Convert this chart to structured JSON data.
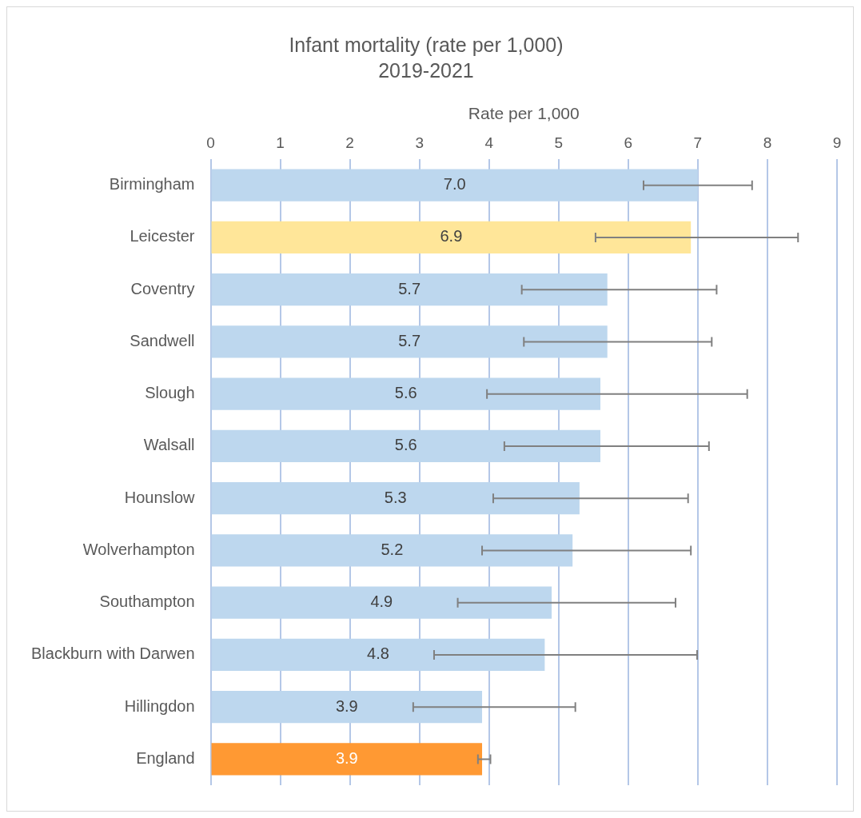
{
  "chart_data": {
    "type": "bar",
    "orientation": "horizontal",
    "title": "Infant mortality (rate per 1,000)",
    "subtitle": "2019-2021",
    "xlabel": "Rate per 1,000",
    "categories": [
      "Birmingham",
      "Leicester",
      "Coventry",
      "Sandwell",
      "Slough",
      "Walsall",
      "Hounslow",
      "Wolverhampton",
      "Southampton",
      "Blackburn with Darwen",
      "Hillingdon",
      "England"
    ],
    "values": [
      7.0,
      6.9,
      5.7,
      5.7,
      5.6,
      5.6,
      5.3,
      5.2,
      4.9,
      4.8,
      3.9,
      3.9
    ],
    "colors": [
      "#bdd7ee",
      "#ffe699",
      "#bdd7ee",
      "#bdd7ee",
      "#bdd7ee",
      "#bdd7ee",
      "#bdd7ee",
      "#bdd7ee",
      "#bdd7ee",
      "#bdd7ee",
      "#bdd7ee",
      "#ff9933"
    ],
    "errors": [
      [
        6.22,
        7.78
      ],
      [
        5.53,
        8.44
      ],
      [
        4.47,
        7.27
      ],
      [
        4.5,
        7.2
      ],
      [
        3.97,
        7.71
      ],
      [
        4.22,
        7.16
      ],
      [
        4.06,
        6.86
      ],
      [
        3.9,
        6.9
      ],
      [
        3.55,
        6.68
      ],
      [
        3.21,
        6.99
      ],
      [
        2.91,
        5.24
      ],
      [
        3.84,
        4.02
      ]
    ],
    "xlim": [
      0,
      9
    ],
    "xticks": [
      0,
      1,
      2,
      3,
      4,
      5,
      6,
      7,
      8,
      9
    ],
    "value_labels": [
      "7.0",
      "6.9",
      "5.7",
      "5.7",
      "5.6",
      "5.6",
      "5.3",
      "5.2",
      "4.9",
      "4.8",
      "3.9",
      "3.9"
    ],
    "grid": "x",
    "legend": false
  }
}
